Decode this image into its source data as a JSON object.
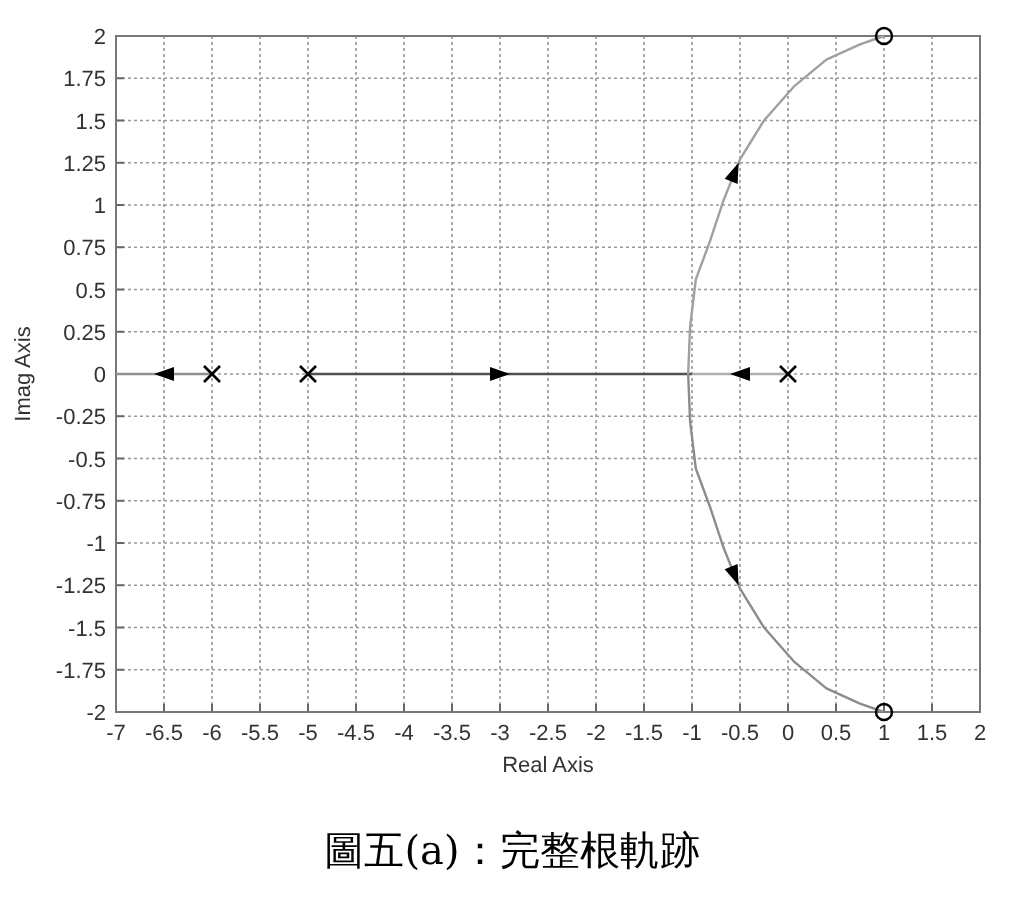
{
  "chart_data": {
    "type": "line",
    "xlabel": "Real Axis",
    "ylabel": "Imag Axis",
    "annotations": [
      "圖五(a)：完整根軌跡"
    ],
    "xlim": [
      -7,
      2
    ],
    "ylim": [
      -2,
      2
    ],
    "xticks": [
      -7,
      -6.5,
      -6,
      -5.5,
      -5,
      -4.5,
      -4,
      -3.5,
      -3,
      -2.5,
      -2,
      -1.5,
      -1,
      -0.5,
      0,
      0.5,
      1,
      1.5,
      2
    ],
    "yticks": [
      -2,
      -1.75,
      -1.5,
      -1.25,
      -1,
      -0.75,
      -0.5,
      -0.25,
      0,
      0.25,
      0.5,
      0.75,
      1,
      1.25,
      1.5,
      1.75,
      2
    ],
    "grid": true,
    "series": [
      {
        "color": "#909090",
        "x": [
          -6,
          -7
        ],
        "values": [
          0,
          0
        ]
      },
      {
        "color": "#505050",
        "x": [
          -5,
          -1
        ],
        "values": [
          0,
          0
        ]
      },
      {
        "color": "#b0b0b0",
        "x": [
          0,
          -1
        ],
        "values": [
          0,
          0
        ]
      },
      {
        "color": "#a0a0a0",
        "x": [
          -1.04,
          -1.02,
          -0.96,
          -0.81,
          -0.67,
          -0.5,
          -0.25,
          0.06,
          0.4,
          0.75,
          1.0
        ],
        "values": [
          0,
          0.28,
          0.56,
          0.79,
          1.03,
          1.27,
          1.5,
          1.7,
          1.86,
          1.95,
          2.0
        ]
      },
      {
        "color": "#8c8c8c",
        "x": [
          -1.04,
          -1.02,
          -0.96,
          -0.81,
          -0.67,
          -0.5,
          -0.25,
          0.06,
          0.4,
          0.75,
          1.0
        ],
        "values": [
          0,
          -0.28,
          -0.56,
          -0.79,
          -1.03,
          -1.27,
          -1.5,
          -1.7,
          -1.86,
          -1.95,
          -2.0
        ]
      },
      {
        "type": "scatter",
        "color": "#000000",
        "marker": "cross",
        "x": [
          0,
          -5,
          -6
        ],
        "values": [
          0,
          0,
          0
        ]
      },
      {
        "type": "scatter",
        "color": "#000000",
        "marker": "circle",
        "x": [
          1,
          1
        ],
        "values": [
          2,
          -2
        ]
      }
    ]
  }
}
